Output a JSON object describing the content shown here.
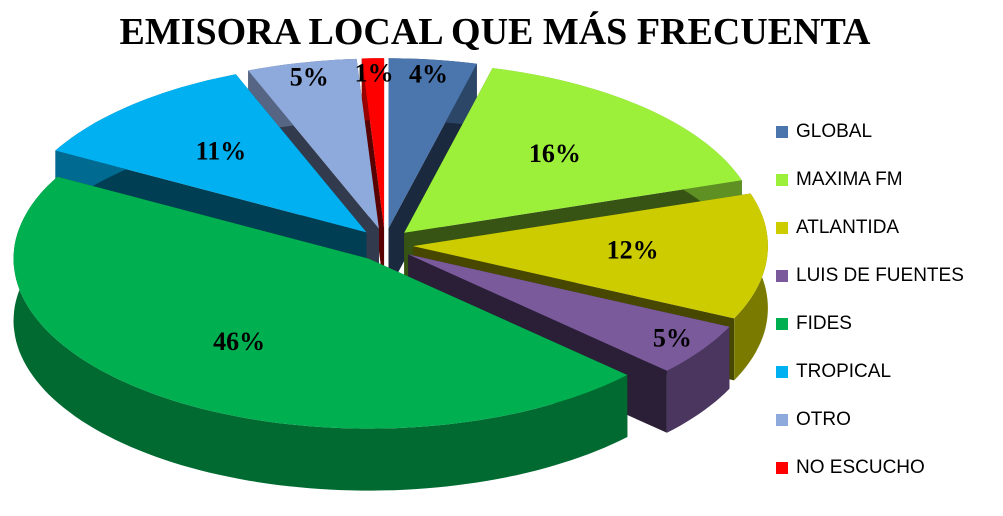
{
  "chart_data": {
    "type": "pie",
    "title": "EMISORA LOCAL QUE MÁS FRECUENTA",
    "categories": [
      "GLOBAL",
      "MAXIMA FM",
      "ATLANTIDA",
      "LUIS DE FUENTES",
      "FIDES",
      "TROPICAL",
      "OTRO",
      "NO ESCUCHO"
    ],
    "values": [
      4,
      16,
      12,
      5,
      46,
      11,
      5,
      1
    ],
    "value_labels": [
      "4%",
      "16%",
      "12%",
      "5%",
      "46%",
      "11%",
      "5%",
      "1%"
    ],
    "colors": [
      "#4a75ad",
      "#9df03a",
      "#cccc00",
      "#7b5a9c",
      "#00b050",
      "#00b0f0",
      "#8ea9db",
      "#ff0000"
    ],
    "legend": "right"
  }
}
